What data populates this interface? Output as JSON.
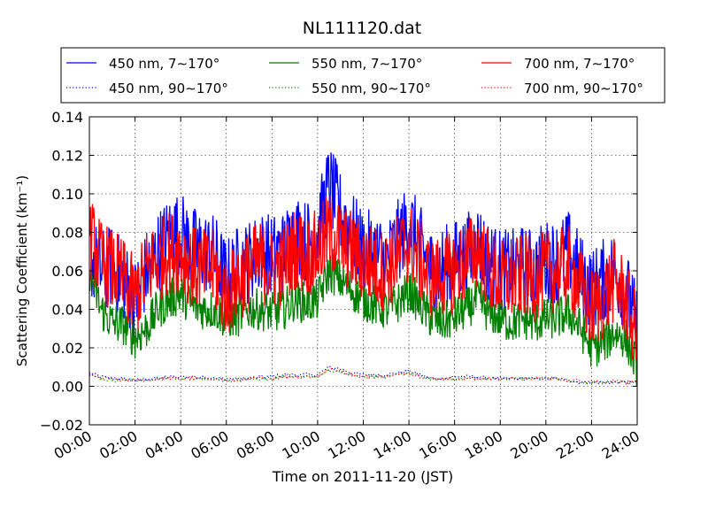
{
  "chart_data": {
    "type": "line",
    "title": "NL111120.dat",
    "xlabel": "Time on 2011-11-20 (JST)",
    "ylabel": "Scattering Coefficient (km⁻¹)",
    "xlim": [
      "00:00",
      "24:00"
    ],
    "ylim": [
      -0.02,
      0.14
    ],
    "x_ticks": [
      "00:00",
      "02:00",
      "04:00",
      "06:00",
      "08:00",
      "10:00",
      "12:00",
      "14:00",
      "16:00",
      "18:00",
      "20:00",
      "22:00",
      "24:00"
    ],
    "y_ticks": [
      "−0.02",
      "0.00",
      "0.02",
      "0.04",
      "0.06",
      "0.08",
      "0.10",
      "0.12",
      "0.14"
    ],
    "grid": true,
    "legend_position": "top",
    "x_hours": [
      0,
      0.5,
      1,
      1.5,
      2,
      2.5,
      3,
      3.5,
      4,
      4.5,
      5,
      5.5,
      6,
      6.5,
      7,
      7.5,
      8,
      8.5,
      9,
      9.5,
      10,
      10.5,
      11,
      11.5,
      12,
      12.5,
      13,
      13.5,
      14,
      14.5,
      15,
      15.5,
      16,
      16.5,
      17,
      17.5,
      18,
      18.5,
      19,
      19.5,
      20,
      20.5,
      21,
      21.5,
      22,
      22.5,
      23,
      23.5,
      24
    ],
    "series": [
      {
        "name": "450 nm, 7∼170°",
        "style": "solid",
        "color": "#0000ff",
        "values": [
          0.068,
          0.06,
          0.062,
          0.055,
          0.045,
          0.06,
          0.07,
          0.078,
          0.08,
          0.072,
          0.07,
          0.068,
          0.055,
          0.062,
          0.065,
          0.07,
          0.068,
          0.07,
          0.08,
          0.075,
          0.08,
          0.105,
          0.09,
          0.08,
          0.07,
          0.07,
          0.065,
          0.075,
          0.085,
          0.072,
          0.06,
          0.062,
          0.065,
          0.068,
          0.075,
          0.065,
          0.06,
          0.06,
          0.062,
          0.06,
          0.065,
          0.065,
          0.07,
          0.058,
          0.05,
          0.055,
          0.06,
          0.05,
          0.03
        ]
      },
      {
        "name": "450 nm, 90∼170°",
        "style": "dotted",
        "color": "#0000ff",
        "values": [
          0.007,
          0.005,
          0.004,
          0.004,
          0.003,
          0.004,
          0.004,
          0.005,
          0.005,
          0.005,
          0.005,
          0.004,
          0.004,
          0.004,
          0.004,
          0.005,
          0.005,
          0.006,
          0.006,
          0.006,
          0.006,
          0.01,
          0.009,
          0.007,
          0.006,
          0.006,
          0.006,
          0.007,
          0.008,
          0.006,
          0.004,
          0.004,
          0.005,
          0.005,
          0.005,
          0.004,
          0.004,
          0.004,
          0.004,
          0.004,
          0.004,
          0.004,
          0.003,
          0.002,
          0.002,
          0.002,
          0.002,
          0.002,
          0.002
        ]
      },
      {
        "name": "550 nm, 7∼170°",
        "style": "solid",
        "color": "#008000",
        "values": [
          0.06,
          0.04,
          0.033,
          0.032,
          0.025,
          0.03,
          0.04,
          0.045,
          0.048,
          0.042,
          0.04,
          0.04,
          0.035,
          0.036,
          0.04,
          0.04,
          0.038,
          0.04,
          0.045,
          0.043,
          0.045,
          0.06,
          0.055,
          0.05,
          0.045,
          0.042,
          0.04,
          0.043,
          0.05,
          0.042,
          0.035,
          0.033,
          0.036,
          0.04,
          0.045,
          0.038,
          0.035,
          0.033,
          0.035,
          0.033,
          0.035,
          0.035,
          0.038,
          0.03,
          0.02,
          0.022,
          0.028,
          0.025,
          0.01
        ]
      },
      {
        "name": "550 nm, 90∼170°",
        "style": "dotted",
        "color": "#008000",
        "values": [
          0.006,
          0.004,
          0.003,
          0.003,
          0.003,
          0.003,
          0.004,
          0.004,
          0.004,
          0.004,
          0.004,
          0.004,
          0.003,
          0.003,
          0.004,
          0.004,
          0.004,
          0.005,
          0.005,
          0.005,
          0.005,
          0.008,
          0.007,
          0.006,
          0.005,
          0.005,
          0.005,
          0.006,
          0.007,
          0.005,
          0.004,
          0.004,
          0.004,
          0.004,
          0.004,
          0.004,
          0.004,
          0.004,
          0.004,
          0.004,
          0.004,
          0.004,
          0.003,
          0.002,
          0.002,
          0.002,
          0.002,
          0.002,
          0.002
        ]
      },
      {
        "name": "700 nm, 7∼170°",
        "style": "solid",
        "color": "#ff0000",
        "values": [
          0.078,
          0.065,
          0.06,
          0.055,
          0.045,
          0.06,
          0.065,
          0.07,
          0.07,
          0.062,
          0.06,
          0.06,
          0.045,
          0.055,
          0.06,
          0.065,
          0.06,
          0.062,
          0.072,
          0.068,
          0.07,
          0.08,
          0.075,
          0.07,
          0.065,
          0.062,
          0.06,
          0.068,
          0.075,
          0.065,
          0.055,
          0.058,
          0.06,
          0.065,
          0.072,
          0.06,
          0.055,
          0.055,
          0.058,
          0.055,
          0.06,
          0.06,
          0.062,
          0.05,
          0.04,
          0.045,
          0.055,
          0.045,
          0.025
        ]
      },
      {
        "name": "700 nm, 90∼170°",
        "style": "dotted",
        "color": "#ff0000",
        "values": [
          0.006,
          0.004,
          0.004,
          0.003,
          0.003,
          0.003,
          0.004,
          0.004,
          0.004,
          0.004,
          0.004,
          0.004,
          0.003,
          0.003,
          0.004,
          0.004,
          0.004,
          0.005,
          0.005,
          0.005,
          0.005,
          0.009,
          0.008,
          0.006,
          0.005,
          0.005,
          0.005,
          0.006,
          0.007,
          0.005,
          0.004,
          0.004,
          0.004,
          0.004,
          0.004,
          0.004,
          0.004,
          0.004,
          0.004,
          0.004,
          0.004,
          0.004,
          0.003,
          0.003,
          0.003,
          0.002,
          0.003,
          0.002,
          0.002
        ]
      }
    ]
  }
}
